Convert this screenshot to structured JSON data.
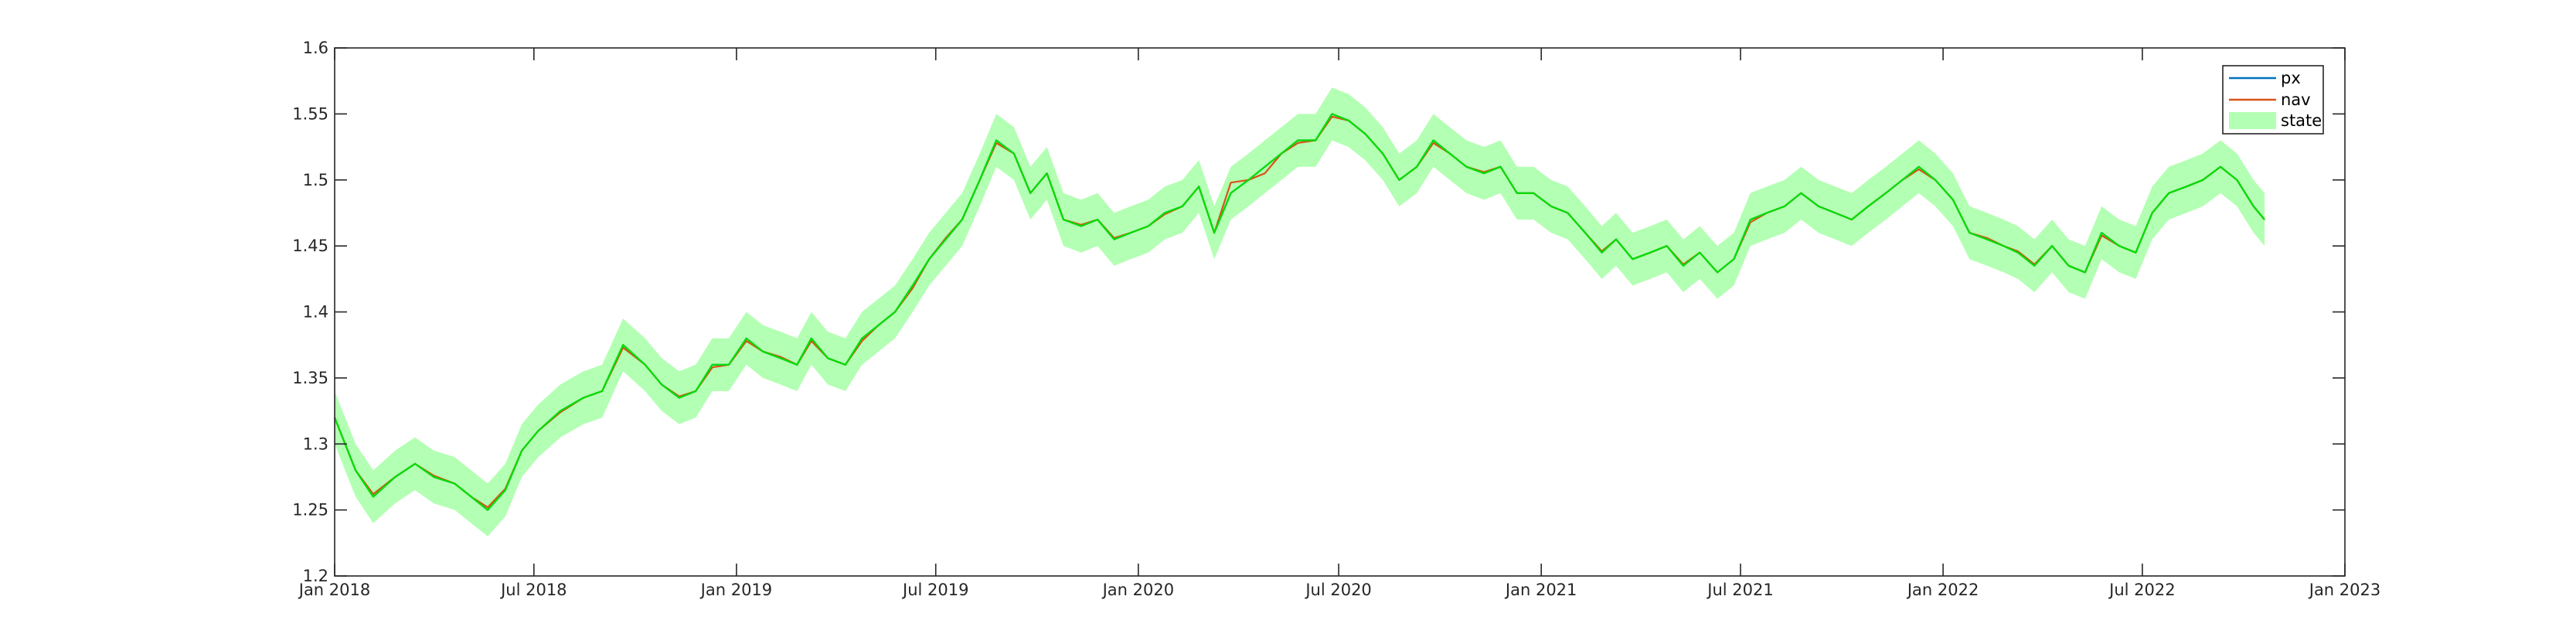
{
  "chart_data": {
    "type": "line",
    "title": "",
    "xlabel": "",
    "ylabel": "",
    "x_range": [
      "2018-01-01",
      "2023-01-01"
    ],
    "ylim": [
      1.2,
      1.6
    ],
    "yticks": [
      "1.2",
      "1.25",
      "1.3",
      "1.35",
      "1.4",
      "1.45",
      "1.5",
      "1.55",
      "1.6"
    ],
    "xticks": [
      {
        "date": "2018-01-01",
        "label": "Jan 2018"
      },
      {
        "date": "2018-07-01",
        "label": "Jul 2018"
      },
      {
        "date": "2019-01-01",
        "label": "Jan 2019"
      },
      {
        "date": "2019-07-01",
        "label": "Jul 2019"
      },
      {
        "date": "2020-01-01",
        "label": "Jan 2020"
      },
      {
        "date": "2020-07-01",
        "label": "Jul 2020"
      },
      {
        "date": "2021-01-01",
        "label": "Jan 2021"
      },
      {
        "date": "2021-07-01",
        "label": "Jul 2021"
      },
      {
        "date": "2022-01-01",
        "label": "Jan 2022"
      },
      {
        "date": "2022-07-01",
        "label": "Jul 2022"
      },
      {
        "date": "2023-01-01",
        "label": "Jan 2023"
      }
    ],
    "grid": false,
    "legend_position": "top-right",
    "series": [
      {
        "name": "px",
        "color": "#0072BD",
        "role": "line"
      },
      {
        "name": "nav",
        "color": "#D95319",
        "role": "line"
      },
      {
        "name": "state",
        "color": "#00E000",
        "band_color": "#B3FFB3",
        "role": "band",
        "band_halfwidth": 0.02
      }
    ],
    "x": [
      "2018-01-01",
      "2018-01-20",
      "2018-02-05",
      "2018-02-25",
      "2018-03-15",
      "2018-04-01",
      "2018-04-20",
      "2018-05-05",
      "2018-05-20",
      "2018-06-05",
      "2018-06-20",
      "2018-07-05",
      "2018-07-25",
      "2018-08-15",
      "2018-09-01",
      "2018-09-20",
      "2018-10-10",
      "2018-10-25",
      "2018-11-10",
      "2018-11-25",
      "2018-12-10",
      "2018-12-25",
      "2019-01-10",
      "2019-01-25",
      "2019-02-10",
      "2019-02-25",
      "2019-03-10",
      "2019-03-25",
      "2019-04-10",
      "2019-04-25",
      "2019-05-10",
      "2019-05-25",
      "2019-06-10",
      "2019-06-25",
      "2019-07-10",
      "2019-07-25",
      "2019-08-10",
      "2019-08-25",
      "2019-09-10",
      "2019-09-25",
      "2019-10-10",
      "2019-10-25",
      "2019-11-10",
      "2019-11-25",
      "2019-12-10",
      "2019-12-25",
      "2020-01-10",
      "2020-01-25",
      "2020-02-10",
      "2020-02-25",
      "2020-03-10",
      "2020-03-25",
      "2020-04-10",
      "2020-04-25",
      "2020-05-10",
      "2020-05-25",
      "2020-06-10",
      "2020-06-25",
      "2020-07-10",
      "2020-07-25",
      "2020-08-10",
      "2020-08-25",
      "2020-09-10",
      "2020-09-25",
      "2020-10-10",
      "2020-10-25",
      "2020-11-10",
      "2020-11-25",
      "2020-12-10",
      "2020-12-25",
      "2021-01-10",
      "2021-01-25",
      "2021-02-10",
      "2021-02-25",
      "2021-03-10",
      "2021-03-25",
      "2021-04-10",
      "2021-04-25",
      "2021-05-10",
      "2021-05-25",
      "2021-06-10",
      "2021-06-25",
      "2021-07-10",
      "2021-07-25",
      "2021-08-10",
      "2021-08-25",
      "2021-09-10",
      "2021-09-25",
      "2021-10-10",
      "2021-10-25",
      "2021-11-10",
      "2021-11-25",
      "2021-12-10",
      "2021-12-25",
      "2022-01-10",
      "2022-01-25",
      "2022-02-10",
      "2022-02-25",
      "2022-03-10",
      "2022-03-25",
      "2022-04-10",
      "2022-04-25",
      "2022-05-10",
      "2022-05-25",
      "2022-06-10",
      "2022-06-25",
      "2022-07-10",
      "2022-07-25",
      "2022-08-10",
      "2022-08-25",
      "2022-09-10",
      "2022-09-25",
      "2022-10-10",
      "2022-10-20"
    ],
    "px": [
      1.32,
      1.28,
      1.26,
      1.275,
      1.285,
      1.275,
      1.27,
      1.26,
      1.25,
      1.265,
      1.295,
      1.31,
      1.325,
      1.335,
      1.34,
      1.375,
      1.36,
      1.345,
      1.335,
      1.34,
      1.36,
      1.36,
      1.38,
      1.37,
      1.365,
      1.36,
      1.38,
      1.365,
      1.36,
      1.38,
      1.39,
      1.4,
      1.42,
      1.44,
      1.455,
      1.47,
      1.5,
      1.53,
      1.52,
      1.49,
      1.505,
      1.47,
      1.465,
      1.47,
      1.455,
      1.46,
      1.465,
      1.475,
      1.48,
      1.495,
      1.46,
      1.49,
      1.5,
      1.51,
      1.52,
      1.53,
      1.53,
      1.55,
      1.545,
      1.535,
      1.52,
      1.5,
      1.51,
      1.53,
      1.52,
      1.51,
      1.505,
      1.51,
      1.49,
      1.49,
      1.48,
      1.475,
      1.46,
      1.445,
      1.455,
      1.44,
      1.445,
      1.45,
      1.435,
      1.445,
      1.43,
      1.44,
      1.47,
      1.475,
      1.48,
      1.49,
      1.48,
      1.475,
      1.47,
      1.48,
      1.49,
      1.5,
      1.51,
      1.5,
      1.485,
      1.46,
      1.455,
      1.45,
      1.445,
      1.435,
      1.45,
      1.435,
      1.43,
      1.46,
      1.45,
      1.445,
      1.475,
      1.49,
      1.495,
      1.5,
      1.51,
      1.5,
      1.48,
      1.47
    ],
    "nav": [
      1.32,
      1.28,
      1.262,
      1.275,
      1.285,
      1.276,
      1.27,
      1.26,
      1.252,
      1.266,
      1.295,
      1.31,
      1.324,
      1.335,
      1.34,
      1.373,
      1.36,
      1.345,
      1.336,
      1.34,
      1.358,
      1.36,
      1.378,
      1.37,
      1.366,
      1.36,
      1.378,
      1.365,
      1.36,
      1.378,
      1.39,
      1.4,
      1.418,
      1.44,
      1.456,
      1.47,
      1.5,
      1.528,
      1.52,
      1.49,
      1.505,
      1.47,
      1.466,
      1.47,
      1.456,
      1.46,
      1.465,
      1.474,
      1.48,
      1.495,
      1.46,
      1.498,
      1.5,
      1.505,
      1.52,
      1.528,
      1.53,
      1.548,
      1.545,
      1.535,
      1.52,
      1.5,
      1.51,
      1.528,
      1.52,
      1.51,
      1.506,
      1.51,
      1.49,
      1.49,
      1.48,
      1.475,
      1.46,
      1.446,
      1.455,
      1.44,
      1.445,
      1.45,
      1.436,
      1.445,
      1.43,
      1.44,
      1.468,
      1.475,
      1.48,
      1.49,
      1.48,
      1.475,
      1.47,
      1.48,
      1.49,
      1.5,
      1.508,
      1.5,
      1.485,
      1.46,
      1.456,
      1.45,
      1.446,
      1.436,
      1.45,
      1.435,
      1.43,
      1.458,
      1.45,
      1.445,
      1.475,
      1.49,
      1.495,
      1.5,
      1.51,
      1.5,
      1.48,
      1.47
    ]
  },
  "legend": {
    "items": [
      {
        "label": "px",
        "swatch": "line",
        "color": "#0072BD"
      },
      {
        "label": "nav",
        "swatch": "line",
        "color": "#D95319"
      },
      {
        "label": "state",
        "swatch": "patch",
        "color": "#B3FFB3"
      }
    ]
  }
}
